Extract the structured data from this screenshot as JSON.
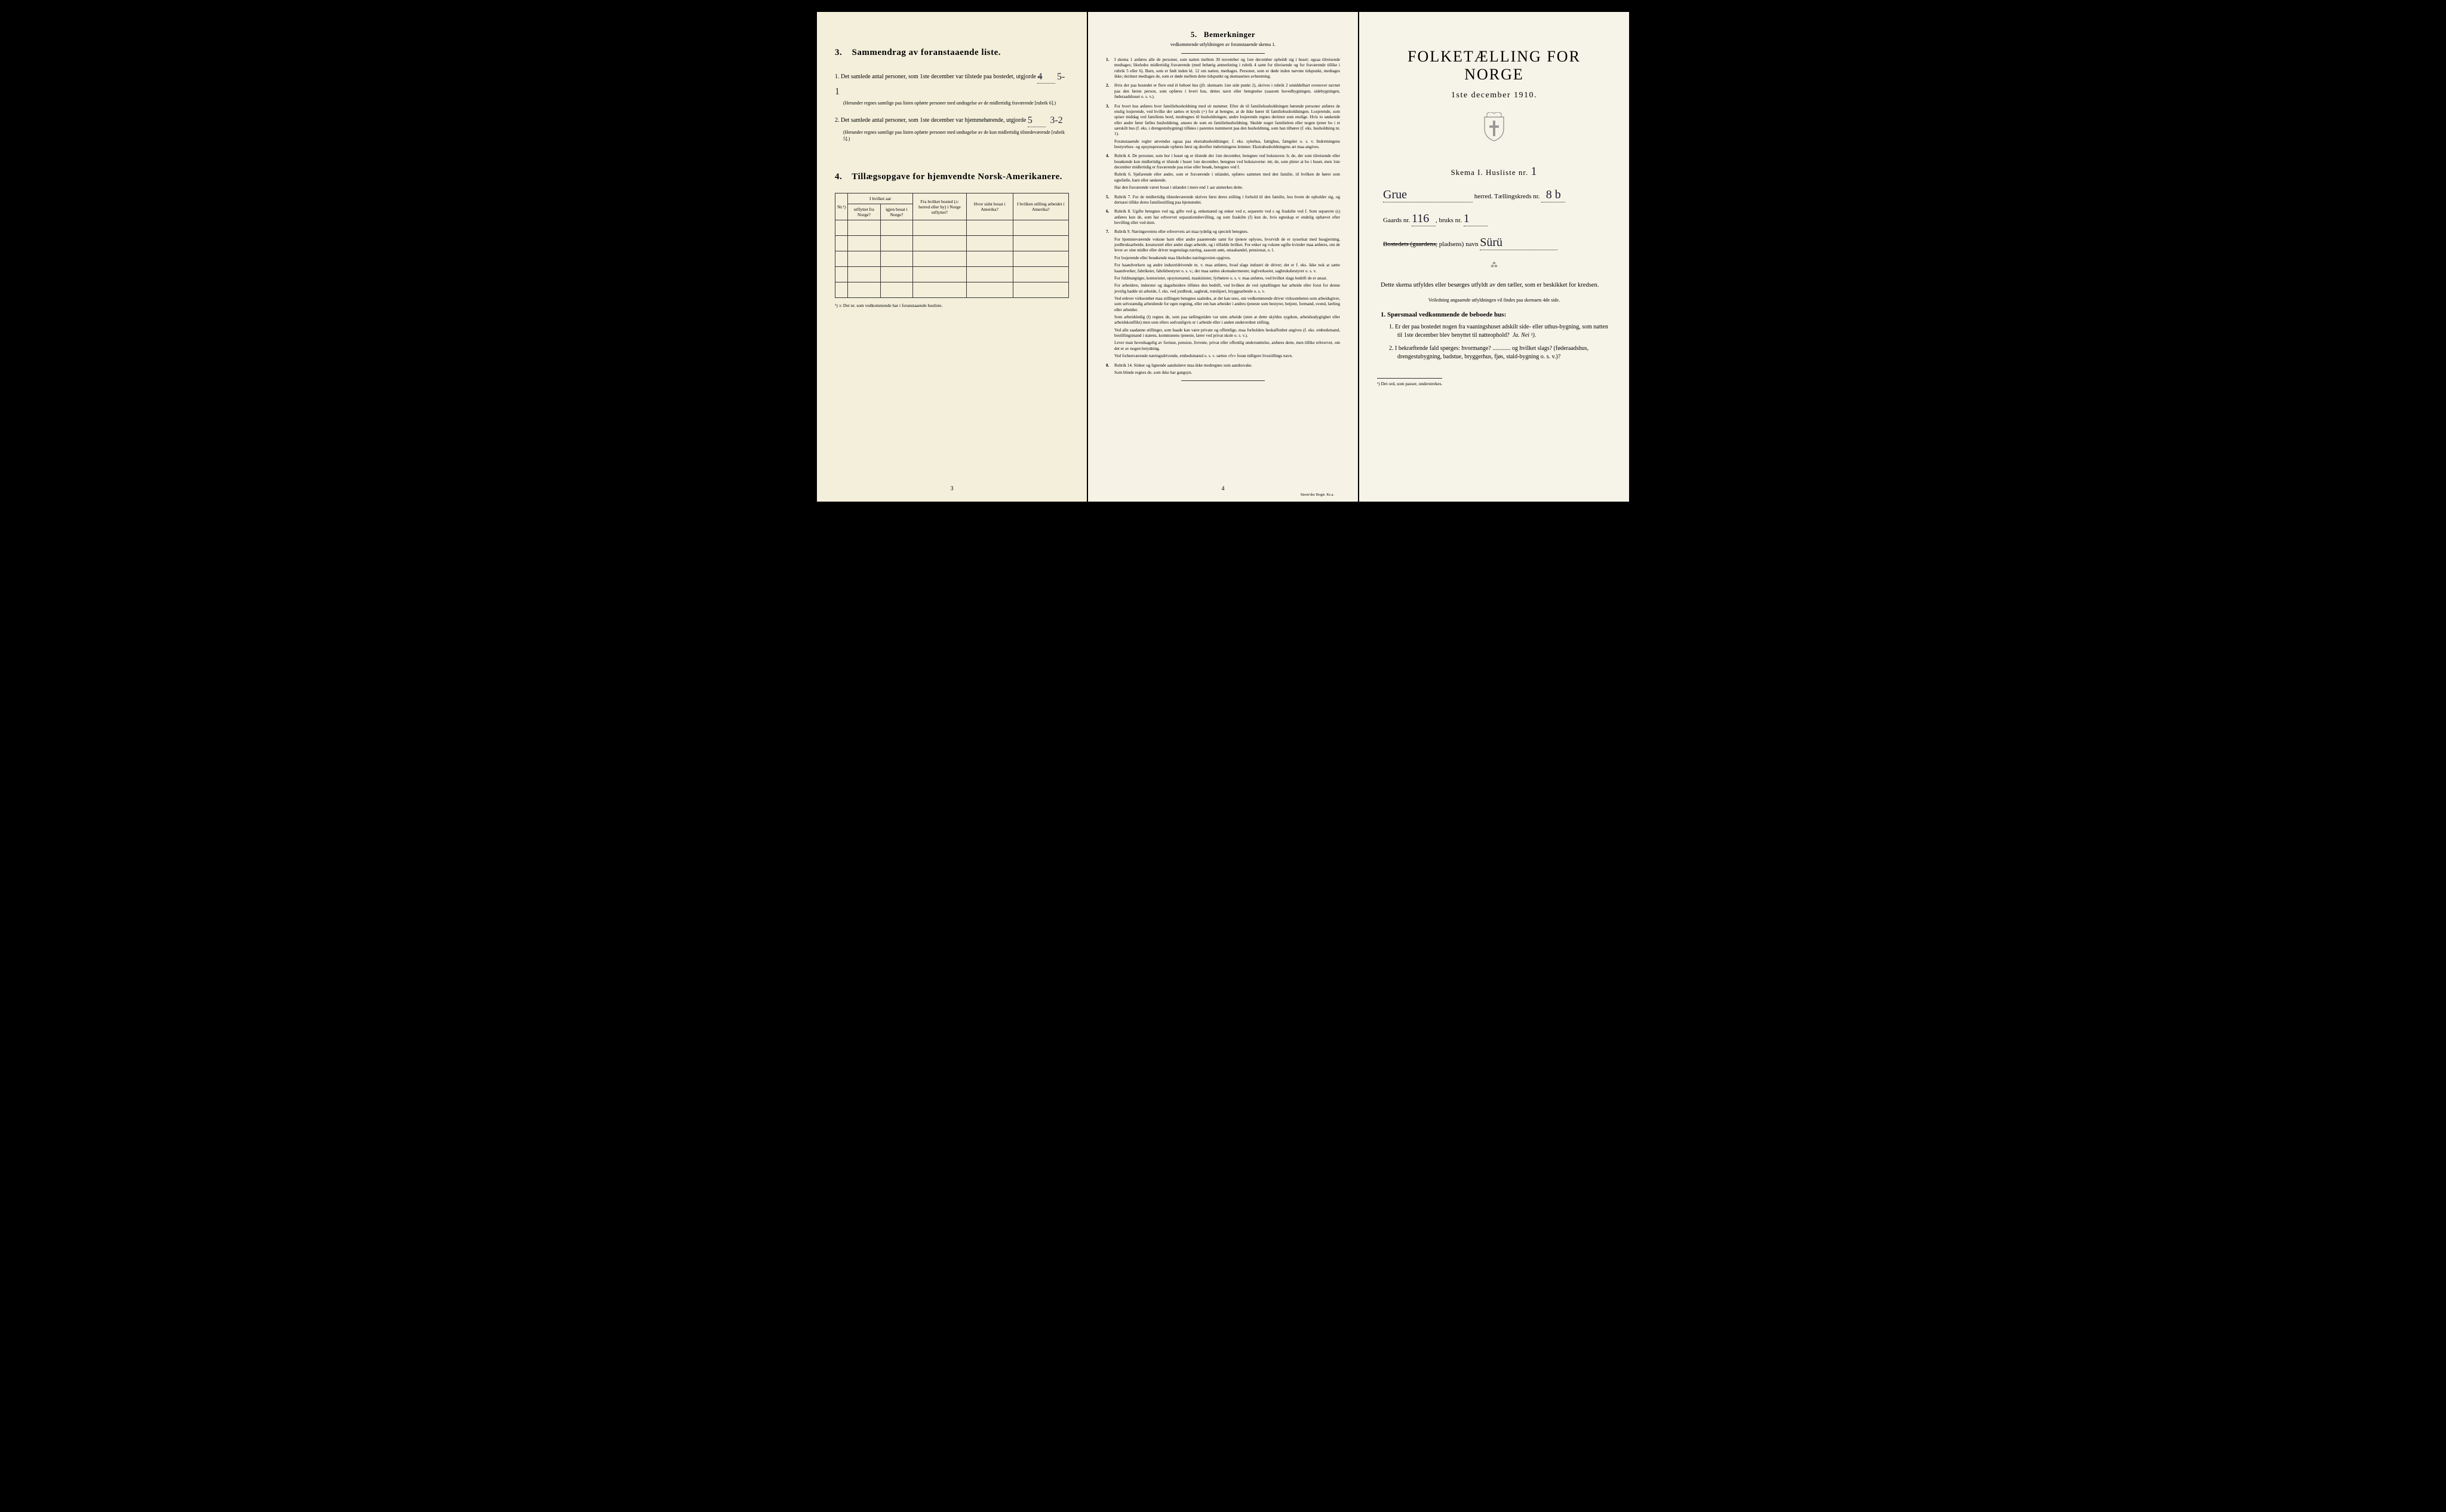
{
  "page1": {
    "section3": {
      "number": "3.",
      "title": "Sammendrag av foranstaaende liste.",
      "item1_label": "Det samlede antal personer, som 1ste december var tilstede paa bostedet, utgjorde",
      "item1_num": "1.",
      "item1_val_struck": "4",
      "item1_val": "5-1",
      "item1_note": "(Herunder regnes samtlige paa listen opførte personer med undtagelse av de midlertidig fraværende [rubrik 6].)",
      "item2_num": "2.",
      "item2_label": "Det samlede antal personer, som 1ste december var hjemmehørende, utgjorde",
      "item2_val": "5",
      "item2_val2": "3-2",
      "item2_note": "(Herunder regnes samtlige paa listen opførte personer med undtagelse av de kun midlertidig tilstedeværende [rubrik 5].)"
    },
    "section4": {
      "number": "4.",
      "title": "Tillægsopgave for hjemvendte Norsk-Amerikanere.",
      "headers": {
        "nr": "Nr.¹)",
        "col_group": "I hvilket aar",
        "a": "utflyttet fra Norge?",
        "b": "igjen bosat i Norge?",
        "c": "Fra hvilket bosted (ɔ: herred eller by) i Norge utflyttet?",
        "d": "Hvor sidst bosat i Amerika?",
        "e": "I hvilken stilling arbeidet i Amerika?"
      },
      "footnote": "¹) ɔ: Det nr. som vedkommende har i foranstaaende husliste."
    },
    "page_num": "3"
  },
  "page2": {
    "title_num": "5.",
    "title": "Bemerkninger",
    "subtitle": "vedkommende utfyldningen av foranstaaende skema 1.",
    "items": [
      {
        "n": "1.",
        "t": "I skema 1 anføres alle de personer, som natten mellem 30 november og 1ste december opholdt sig i huset; ogsaa tilreisende medtages; likeledes midlertidig fraværende (med behørig anmerkning i rubrik 4 samt for tilreisende og for fraværende tillike i rubrik 5 eller 6). Barn, som er født inden kl. 12 om natten, medtages. Personer, som er døde inden nævnte tidspunkt, medtages ikke; derimot medtages de, som er døde mellem dette tidspunkt og skemaernes avhentning."
      },
      {
        "n": "2.",
        "t": "Hvis der paa bostedet er flere end ét beboet hus (jfr. skemaets 1ste side punkt 2), skrives i rubrik 2 umiddelbart ovenover navnet paa den første person, som opføres i hvert hus, dettes navn eller betegnelse (saasom hovedbygningen, sidebygningen, føderaadshuset o. s. v.)."
      },
      {
        "n": "3.",
        "t": "For hvert hus anføres hver familiehusholdning med sit nummer. Efter de til familiehusholdningen hørende personer anføres de enslig losjerende, ved hvilke der sættes et kryds (×) for at betegne, at de ikke hører til familiehusholdningen. Losjerende, som spiser middag ved familiens bord, medregnes til husholdningen; andre losjerende regnes derimot som enslige. Hvis to søskende eller andre fører fælles husholdning, ansees de som en familiehusholdning. Skulde noget familielem eller nogen tjener bo i et særskilt hus (f. eks. i drengestubygning) tilføies i parentes nummeret paa den husholdning, som han tilhører (f. eks. husholdning nr. 1).",
        "extra": "Foranstaaende regler anvendes ogsaa paa ekstrahusholdninger, f. eks. sykehus, fattighus, fængsler o. s. v. Indretningens bestyrelses- og opsynspersonale opføres først og derefter indretningens lemmer. Ekstrahusholdningens art maa angives."
      },
      {
        "n": "4.",
        "t": "Rubrik 4. De personer, som bor i huset og er tilstede der 1ste december, betegnes ved bokstaven: b; de, der som tilreisende eller besøkende kun midlertidig er tilstede i huset 1ste december, betegnes ved bokstaverne: mt; de, som pleier at bo i huset, men 1ste december midlertidig er fraværende paa reise eller besøk, betegnes ved f.",
        "extra": "Rubrik 6. Sjøfarende eller andre, som er fraværende i utlandet, opføres sammen med den familie, til hvilken de hører som egtefælle, barn eller søskende.",
        "extra2": "Har den fraværende været bosat i utlandet i mere end 1 aar anmerkes dette."
      },
      {
        "n": "5.",
        "t": "Rubrik 7. For de midlertidig tilstedeværende skrives først deres stilling i forhold til den familie, hos hvem de opholder sig, og dernæst tillike deres familiestilling paa hjemstedet."
      },
      {
        "n": "6.",
        "t": "Rubrik 8. Ugifte betegnes ved ug, gifte ved g, enkemænd og enker ved e, separerte ved s og fraskilte ved f. Som separerte (s) anføres kun de, som har erhvervet separationsbevilling, og som fraskilte (f) kun de, hvis egteskap er endelig ophævet efter bevilling eller ved dom."
      },
      {
        "n": "7.",
        "t": "Rubrik 9. Næringsveiens eller erhvervets art maa tydelig og specielt betegnes.",
        "paras": [
          "For hjemmeværende voksne barn eller andre paarørende samt for tjenere oplyses, hvorvidt de er sysselsat med husgjerning, jordbruksarbeide, kreaturstel eller andet slags arbeide, og i tilfælde hvilket. For enker og voksne ugifte kvinder maa anføres, om de lever av sine midler eller driver nogenslags næring, saasom søm, smaahandel, pensionat, o. l.",
          "For losjerende eller besøkende maa likeledes næringsveien opgives.",
          "For haandverkere og andre industridrivende m. v. maa anføres, hvad slags industri de driver; det er f. eks. ikke nok at sætte haandverker, fabrikeier, fabrikbestyrer o. s. v.; der maa sættes skomakermester, teglverkseier, sagbruksbestyrer o. s. v.",
          "For fuldmægtiger, kontorister, opsynsmænd, maskinister, fyrbøtere o. s. v. maa anføres, ved hvilket slags bedrift de er ansat.",
          "For arbeidere, inderster og dagarbeidere tilføies den bedrift, ved hvilken de ved optællingen har arbeide eller forut for denne jevnlig hadde sit arbeide, f. eks. ved jordbruk, sagbruk, træsliperi, bryggearbeide o. s. v.",
          "Ved enhver virksomhet maa stillingen betegnes saaledes, at det kan sees, om vedkommende driver virksomheten som arbeidsgiver, som selvstændig arbeidende for egen regning, eller om han arbeider i andres tjeneste som bestyrer, betjent, formand, svend, lærling eller arbeider.",
          "Som arbeidsledig (l) regnes de, som paa tællingstiden var uten arbeide (uten at dette skyldes sygdom, arbeidsudygtighet eller arbeidskonflikt) men som ellers sedvanligvis er i arbeide eller i anden underordnet stilling.",
          "Ved alle saadanne stillinger, som baade kan være private og offentlige, maa forholdets beskaffenhet angives (f. eks. embedsmand, bestillingsmand i statens, kommunens tjeneste, lærer ved privat skole o. s. v.).",
          "Lever man hovedsagelig av formue, pension, livrente, privat eller offentlig understøttelse, anføres dette, men tillike erhvervet, om det er av nogen betydning.",
          "Ved forhenværende næringsdrivende, embedsmænd o. s. v. sættes «fv» foran tidligere livsstillings navn."
        ]
      },
      {
        "n": "8.",
        "t": "Rubrik 14. Sinker og lignende aandssløve maa ikke medregnes som aandssvake.",
        "extra": "Som blinde regnes de, som ikke har gangsyn."
      }
    ],
    "page_num": "4",
    "printer": "Steen'ske Bogtr.  Kr.a."
  },
  "page3": {
    "title": "FOLKETÆLLING FOR NORGE",
    "date": "1ste december 1910.",
    "skema_label": "Skema I.  Husliste nr.",
    "husliste_nr": "1",
    "herred_val": "Grue",
    "herred_label": "herred.  Tællingskreds nr.",
    "kreds_nr": "8 b",
    "gaards_label": "Gaards nr.",
    "gaards_nr": "116",
    "bruks_label": "bruks nr.",
    "bruks_nr": "1",
    "bosted_struck": "Bostedets (gaardens,",
    "bosted_rest": "pladsens) navn",
    "bosted_val": "Sürü",
    "body1": "Dette skema utfyldes eller besørges utfyldt av den tæller, som er beskikket for kredsen.",
    "small": "Veiledning angaaende utfyldningen vil findes paa skemaets 4de side.",
    "q_title_num": "1.",
    "q_title": "Spørsmaal vedkommende de beboede hus:",
    "q1_num": "1.",
    "q1": "Er der paa bostedet nogen fra vaaningshuset adskilt side- eller uthus-bygning, som natten til 1ste december blev benyttet til natteophold?",
    "q1_ans": "Ja.  Nei ¹).",
    "q2_num": "2.",
    "q2": "I bekræftende fald spørges: hvormange? ............ og hvilket slags? (føderaadshus, drengestubygning, badstue, bryggerhus, fjøs, stald-bygning o. s. v.)?",
    "footnote": "¹) Det ord, som passer, understrekes."
  }
}
